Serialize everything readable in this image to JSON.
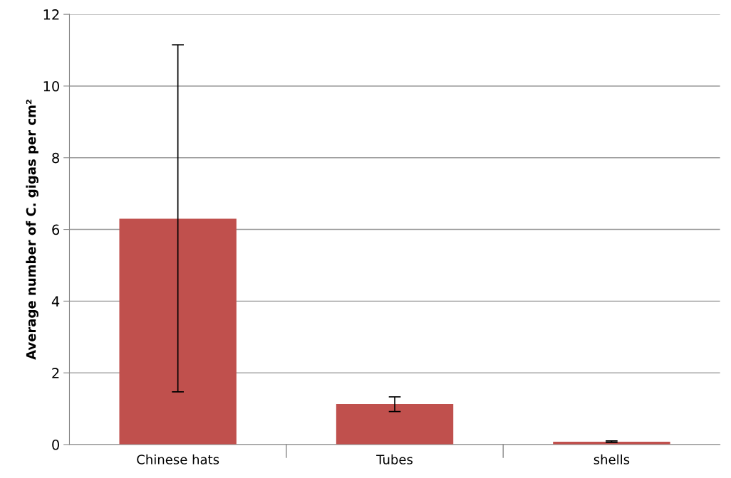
{
  "chart_data": {
    "type": "bar",
    "ylabel": "Average number of C. gigas per cm²",
    "categories": [
      "Chinese hats",
      "Tubes",
      "shells"
    ],
    "values": [
      6.3,
      1.13,
      0.08
    ],
    "errors": [
      [
        1.47,
        11.15
      ],
      [
        0.92,
        1.33
      ],
      [
        0.06,
        0.1
      ]
    ],
    "color": "#c0504d",
    "ylim": [
      0,
      12
    ],
    "yticks": [
      0,
      2,
      4,
      6,
      8,
      10,
      12
    ],
    "grid": "y",
    "legend": false
  }
}
